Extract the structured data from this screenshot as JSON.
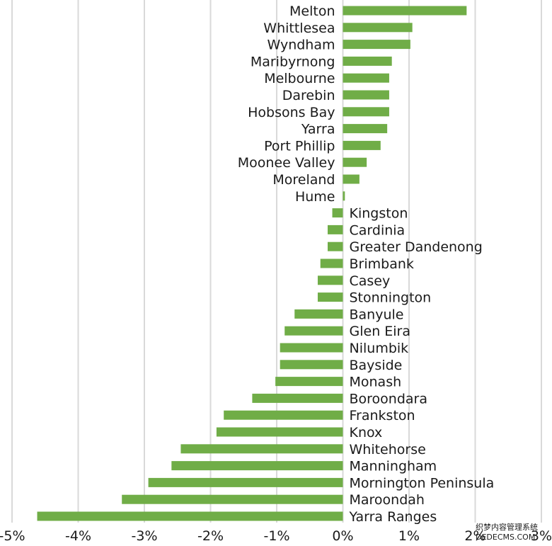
{
  "chart_data": {
    "type": "bar",
    "orientation": "horizontal",
    "categories": [
      "Melton",
      "Whittlesea",
      "Wyndham",
      "Maribyrnong",
      "Melbourne",
      "Darebin",
      "Hobsons Bay",
      "Yarra",
      "Port Phillip",
      "Moonee Valley",
      "Moreland",
      "Hume",
      "Kingston",
      "Cardinia",
      "Greater Dandenong",
      "Brimbank",
      "Casey",
      "Stonnington",
      "Banyule",
      "Glen Eira",
      "Nilumbik",
      "Bayside",
      "Monash",
      "Boroondara",
      "Frankston",
      "Knox",
      "Whitehorse",
      "Manningham",
      "Mornington Peninsula",
      "Maroondah",
      "Yarra Ranges"
    ],
    "values": [
      1.87,
      1.05,
      1.02,
      0.74,
      0.7,
      0.7,
      0.7,
      0.67,
      0.57,
      0.36,
      0.25,
      0.03,
      -0.16,
      -0.23,
      -0.23,
      -0.34,
      -0.38,
      -0.38,
      -0.73,
      -0.88,
      -0.95,
      -0.95,
      -1.02,
      -1.37,
      -1.8,
      -1.91,
      -2.45,
      -2.59,
      -2.94,
      -3.34,
      -4.62
    ],
    "x_ticks": [
      "-5%",
      "-4%",
      "-3%",
      "-2%",
      "-1%",
      "0%",
      "1%",
      "2%",
      "3%"
    ],
    "xlim": [
      -5,
      3
    ],
    "bar_color": "#70ad47",
    "grid_color": "#d9d9d9",
    "grid": "vertical",
    "legend": "none"
  },
  "watermark": {
    "line1": "织梦内容管理系统",
    "line2": "DEDECMS.COM"
  }
}
